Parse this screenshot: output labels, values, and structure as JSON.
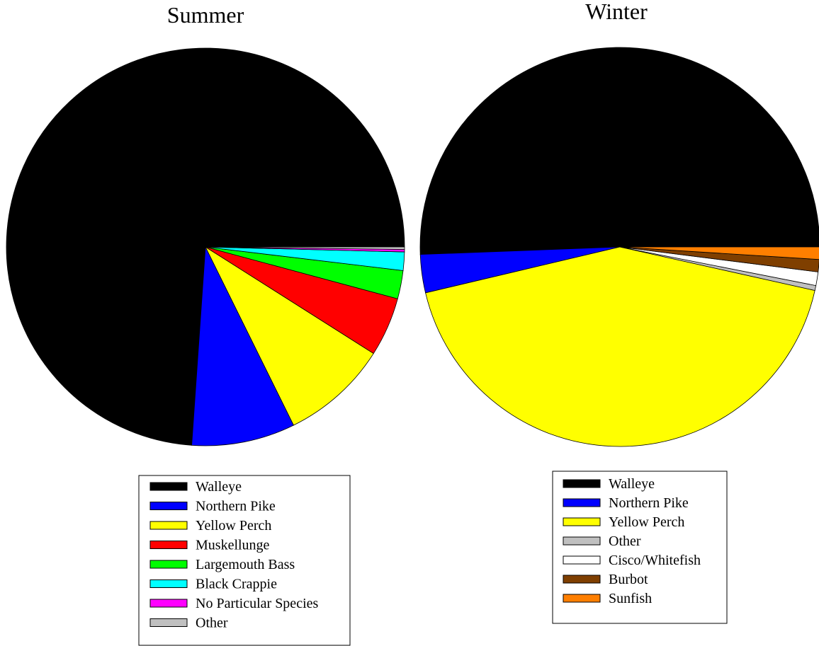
{
  "chart_data": [
    {
      "type": "pie",
      "title": "Summer",
      "legend_placement": "bottom",
      "series": [
        {
          "name": "Walleye",
          "value": 73.9,
          "color": "#000000"
        },
        {
          "name": "Northern Pike",
          "value": 8.4,
          "color": "#0000FF"
        },
        {
          "name": "Yellow Perch",
          "value": 8.7,
          "color": "#FFFF00"
        },
        {
          "name": "Muskellunge",
          "value": 4.8,
          "color": "#FF0000"
        },
        {
          "name": "Largemouth Bass",
          "value": 2.3,
          "color": "#00FF00"
        },
        {
          "name": "Black Crappie",
          "value": 1.5,
          "color": "#00FFFF"
        },
        {
          "name": "No Particular Species",
          "value": 0.2,
          "color": "#FF00FF"
        },
        {
          "name": "Other",
          "value": 0.2,
          "color": "#C0C0C0"
        }
      ]
    },
    {
      "type": "pie",
      "title": "Winter",
      "legend_placement": "bottom",
      "series": [
        {
          "name": "Walleye",
          "value": 50.6,
          "color": "#000000"
        },
        {
          "name": "Northern Pike",
          "value": 3.1,
          "color": "#0000FF"
        },
        {
          "name": "Yellow Perch",
          "value": 42.8,
          "color": "#FFFF00"
        },
        {
          "name": "Other",
          "value": 0.4,
          "color": "#C0C0C0"
        },
        {
          "name": "Cisco/Whitefish",
          "value": 1.1,
          "color": "#FFFFFF"
        },
        {
          "name": "Burbot",
          "value": 1.0,
          "color": "#7F3F00"
        },
        {
          "name": "Sunfish",
          "value": 1.0,
          "color": "#FF7F00"
        }
      ]
    }
  ]
}
